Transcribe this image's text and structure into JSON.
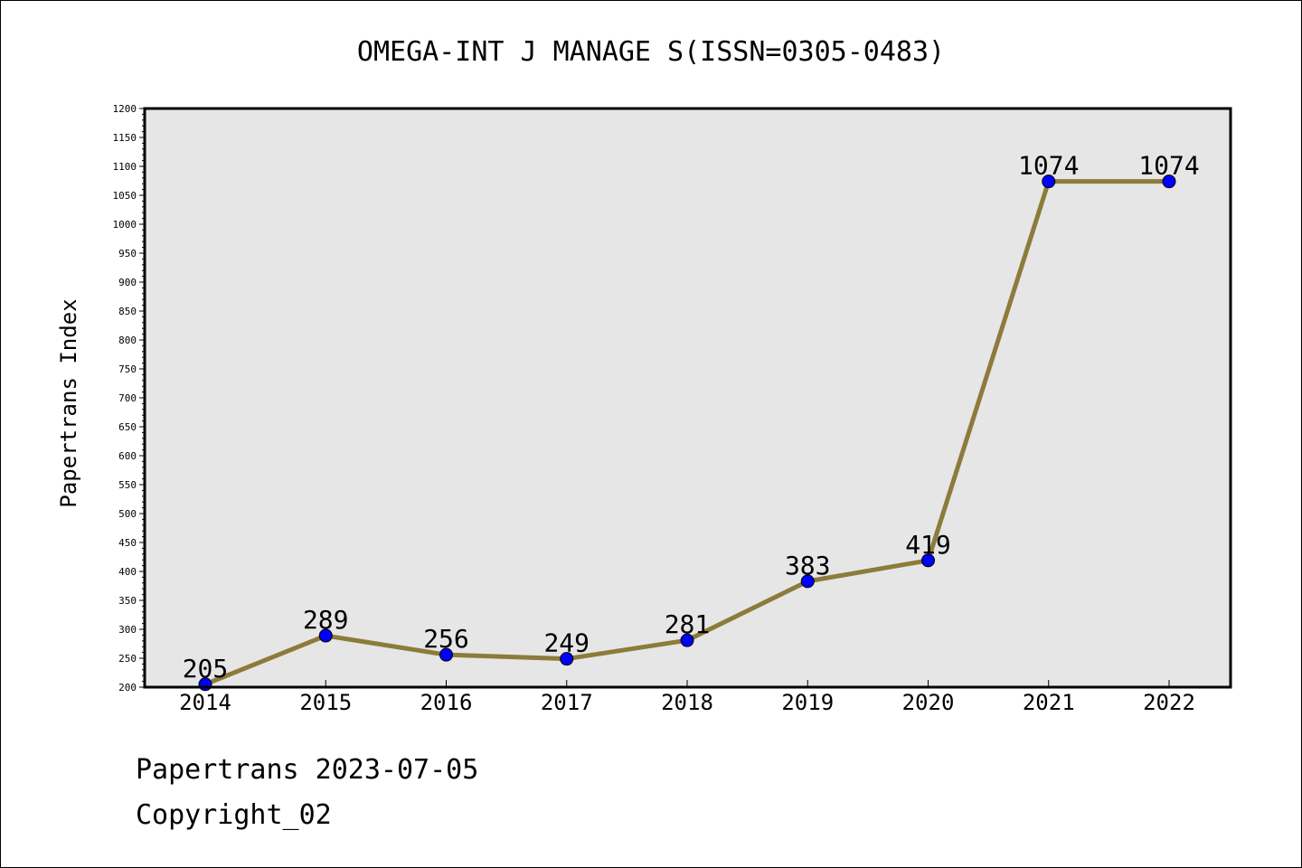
{
  "chart_data": {
    "type": "line",
    "title": "OMEGA-INT J MANAGE S(ISSN=0305-0483)",
    "ylabel": "Papertrans Index",
    "xlabel": "",
    "categories": [
      "2014",
      "2015",
      "2016",
      "2017",
      "2018",
      "2019",
      "2020",
      "2021",
      "2022"
    ],
    "values": [
      205,
      289,
      256,
      249,
      281,
      383,
      419,
      1074,
      1074
    ],
    "data_labels": [
      "205",
      "289",
      "256",
      "249",
      "281",
      "383",
      "419",
      "1074",
      "1074"
    ],
    "ylim": [
      200,
      1200
    ],
    "yticks": [
      200,
      250,
      300,
      350,
      400,
      450,
      500,
      550,
      600,
      650,
      700,
      750,
      800,
      850,
      900,
      950,
      1000,
      1050,
      1100,
      1150,
      1200
    ],
    "ytick_labels": [
      "200",
      "250",
      "300",
      "350",
      "400",
      "450",
      "500",
      "550",
      "600",
      "650",
      "700",
      "750",
      "800",
      "850",
      "900",
      "950",
      "1000",
      "1050",
      "1100",
      "1150",
      "1200"
    ],
    "grid": false,
    "line_color": "#8c7b3a",
    "marker_color": "#0000ff",
    "plot_background": "#e6e6e6"
  },
  "footer": {
    "line1": "Papertrans 2023-07-05",
    "line2": "Copyright_02"
  }
}
